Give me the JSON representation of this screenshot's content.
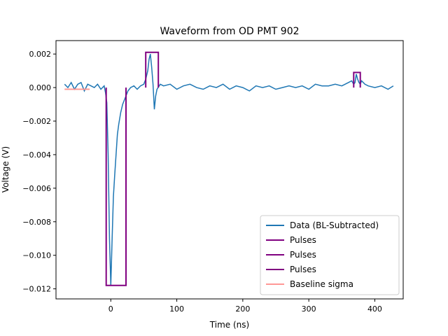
{
  "chart_data": {
    "type": "line",
    "title": "Waveform from OD PMT 902",
    "xlabel": "Time (ns)",
    "ylabel": "Voltage (V)",
    "xlim": [
      -83,
      443
    ],
    "ylim": [
      -0.0126,
      0.0028
    ],
    "xticks": [
      0,
      100,
      200,
      300,
      400
    ],
    "xtick_labels": [
      "0",
      "100",
      "200",
      "300",
      "400"
    ],
    "yticks": [
      0.002,
      0.0,
      -0.002,
      -0.004,
      -0.006,
      -0.008,
      -0.01,
      -0.012
    ],
    "ytick_labels": [
      "0.002",
      "0.000",
      "−0.002",
      "−0.004",
      "−0.006",
      "−0.008",
      "−0.010",
      "−0.012"
    ],
    "grid": false,
    "legend_position": "lower-right",
    "series": [
      {
        "name": "Data (BL-Subtracted)",
        "color": "#1f77b4",
        "x": [
          -70,
          -65,
          -60,
          -55,
          -50,
          -45,
          -40,
          -35,
          -30,
          -25,
          -20,
          -15,
          -10,
          -8,
          -6,
          -4,
          -2,
          0,
          2,
          4,
          6,
          8,
          10,
          12,
          15,
          18,
          22,
          26,
          30,
          35,
          40,
          45,
          50,
          53,
          56,
          58,
          60,
          62,
          64,
          66,
          68,
          70,
          75,
          80,
          90,
          100,
          110,
          120,
          130,
          140,
          150,
          160,
          170,
          180,
          190,
          200,
          210,
          220,
          230,
          240,
          250,
          260,
          270,
          280,
          290,
          300,
          310,
          320,
          330,
          340,
          350,
          360,
          365,
          368,
          370,
          372,
          374,
          376,
          378,
          380,
          385,
          390,
          400,
          410,
          420,
          428
        ],
        "values": [
          0.0002,
          0.0,
          0.0003,
          -0.0001,
          0.0002,
          0.0003,
          -0.0002,
          0.0002,
          0.0001,
          0.0,
          0.0002,
          -0.0001,
          0.0001,
          -0.0003,
          -0.0009,
          -0.004,
          -0.009,
          -0.0118,
          -0.009,
          -0.0065,
          -0.0052,
          -0.004,
          -0.0028,
          -0.0022,
          -0.0015,
          -0.001,
          -0.0006,
          -0.0002,
          0.0,
          0.0001,
          -0.0001,
          0.0001,
          0.0002,
          0.0005,
          0.001,
          0.0017,
          0.002,
          0.0012,
          0.0002,
          -0.0013,
          -0.0005,
          -0.0001,
          0.0002,
          0.0001,
          0.0002,
          -0.0001,
          0.0001,
          0.0002,
          0.0,
          -0.0001,
          0.0001,
          0.0,
          0.0002,
          -0.0001,
          0.0001,
          0.0,
          -0.0002,
          0.0001,
          0.0,
          0.0001,
          -0.0001,
          0.0,
          0.0001,
          0.0,
          0.0001,
          -0.0001,
          0.0002,
          0.0001,
          0.0001,
          0.0002,
          0.0001,
          0.0003,
          0.0004,
          0.0002,
          0.0003,
          0.0008,
          0.0005,
          0.0003,
          0.0002,
          0.0004,
          0.0002,
          0.0001,
          0.0,
          0.0001,
          -0.0001,
          0.0001
        ]
      },
      {
        "name": "Pulses",
        "color": "#800080",
        "x": [
          -7,
          -7,
          23,
          23
        ],
        "values": [
          0.0,
          -0.0118,
          -0.0118,
          0.0
        ]
      },
      {
        "name": "Pulses",
        "color": "#800080",
        "x": [
          53,
          53,
          72,
          72
        ],
        "values": [
          0.0,
          0.0021,
          0.0021,
          0.0
        ]
      },
      {
        "name": "Pulses",
        "color": "#800080",
        "x": [
          368,
          368,
          378,
          378
        ],
        "values": [
          0.0,
          0.0009,
          0.0009,
          0.0
        ]
      },
      {
        "name": "Baseline sigma",
        "color": "#ff9896",
        "x": [
          -70,
          -32
        ],
        "values": [
          -0.0001,
          -0.0001
        ]
      }
    ]
  }
}
